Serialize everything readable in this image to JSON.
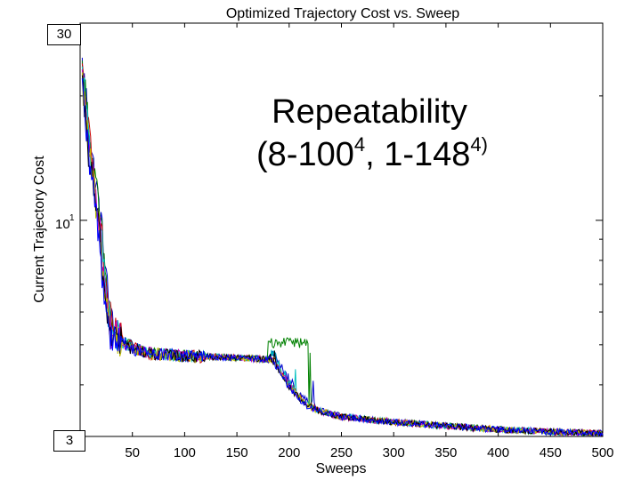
{
  "chart_data": {
    "type": "line",
    "title": "Optimized Trajectory Cost vs. Sweep",
    "xlabel": "Sweeps",
    "ylabel": "Current Trajectory Cost",
    "xlim": [
      0,
      500
    ],
    "ylim": [
      3,
      30
    ],
    "yscale": "log",
    "xticks": [
      50,
      100,
      150,
      200,
      250,
      300,
      350,
      400,
      450,
      500
    ],
    "ytick_label": {
      "base": "10",
      "exponent": "1",
      "value": 10
    },
    "annotation": {
      "line1": "Repeatability",
      "line2_a": "(8-100",
      "line2_sup_a": "4",
      "line2_b": ", 1-148",
      "line2_sup_b": "4)"
    },
    "range_boxes": {
      "top": "30",
      "bottom": "3"
    },
    "series_colors": [
      "#0000cc",
      "#008000",
      "#cc0000",
      "#00bfbf",
      "#bf00bf",
      "#bfbf00",
      "#000000",
      "#0000ff"
    ],
    "series_profile": {
      "x": [
        0,
        5,
        10,
        15,
        20,
        25,
        30,
        40,
        50,
        70,
        100,
        150,
        185,
        200,
        215,
        230,
        250,
        300,
        350,
        400,
        450,
        500
      ],
      "y": [
        24,
        19,
        14,
        11.5,
        9,
        6.5,
        5.4,
        5.1,
        4.9,
        4.75,
        4.7,
        4.65,
        4.6,
        4.0,
        3.6,
        3.45,
        3.35,
        3.25,
        3.18,
        3.12,
        3.08,
        3.05
      ]
    },
    "bump": {
      "x_start": 180,
      "x_end": 225,
      "y_peak": 5.0
    }
  }
}
